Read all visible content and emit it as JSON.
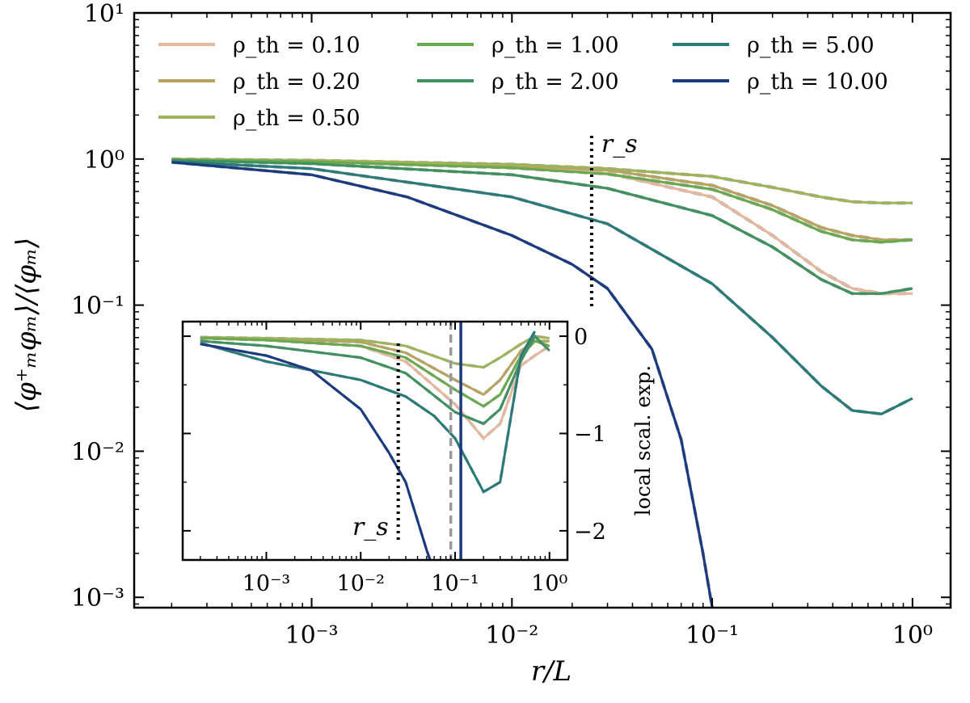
{
  "chart_data": [
    {
      "type": "line",
      "title": "",
      "xlabel": "r/L",
      "ylabel": "⟨φ⁺ₘφₘ⟩/⟨φₘ⟩",
      "xscale": "log",
      "yscale": "log",
      "xlim": [
        0.00013,
        1.55
      ],
      "ylim": [
        0.00085,
        10
      ],
      "xticks": [
        0.001,
        0.01,
        0.1,
        1
      ],
      "xtick_labels": [
        "10⁻³",
        "10⁻²",
        "10⁻¹",
        "10⁰"
      ],
      "yticks": [
        0.001,
        0.01,
        0.1,
        1,
        10
      ],
      "ytick_labels": [
        "10⁻³",
        "10⁻²",
        "10⁻¹",
        "10⁰",
        "10¹"
      ],
      "grid": false,
      "legend_position": "top-left, 3 columns",
      "annotations": [
        {
          "text": "r_s",
          "x": 0.025
        }
      ],
      "fit_curves": "grey dashed",
      "series": [
        {
          "name": "ρ_th = 0.10",
          "color": "#e5b9a0",
          "x": [
            0.0002,
            0.001,
            0.01,
            0.03,
            0.1,
            0.2,
            0.35,
            0.5,
            0.7,
            1.0
          ],
          "y": [
            0.99,
            0.96,
            0.88,
            0.8,
            0.55,
            0.3,
            0.17,
            0.13,
            0.12,
            0.12
          ]
        },
        {
          "name": "ρ_th = 0.20",
          "color": "#b8a460",
          "x": [
            0.0002,
            0.001,
            0.01,
            0.03,
            0.1,
            0.2,
            0.35,
            0.5,
            0.7,
            1.0
          ],
          "y": [
            0.99,
            0.97,
            0.9,
            0.84,
            0.66,
            0.48,
            0.34,
            0.3,
            0.28,
            0.28
          ]
        },
        {
          "name": "ρ_th = 0.50",
          "color": "#9fb45a",
          "x": [
            0.0002,
            0.001,
            0.01,
            0.03,
            0.1,
            0.2,
            0.35,
            0.5,
            0.7,
            1.0
          ],
          "y": [
            1.0,
            0.98,
            0.92,
            0.86,
            0.76,
            0.64,
            0.55,
            0.51,
            0.5,
            0.5
          ]
        },
        {
          "name": "ρ_th = 1.00",
          "color": "#6aaa4e",
          "x": [
            0.0002,
            0.001,
            0.01,
            0.03,
            0.1,
            0.2,
            0.35,
            0.5,
            0.7,
            1.0
          ],
          "y": [
            0.99,
            0.96,
            0.87,
            0.79,
            0.62,
            0.45,
            0.32,
            0.28,
            0.27,
            0.28
          ]
        },
        {
          "name": "ρ_th = 2.00",
          "color": "#3f9160",
          "x": [
            0.0002,
            0.001,
            0.01,
            0.03,
            0.1,
            0.2,
            0.35,
            0.5,
            0.7,
            1.0
          ],
          "y": [
            0.98,
            0.93,
            0.78,
            0.63,
            0.41,
            0.25,
            0.15,
            0.12,
            0.12,
            0.13
          ]
        },
        {
          "name": "ρ_th = 5.00",
          "color": "#2a7a7a",
          "x": [
            0.0002,
            0.001,
            0.01,
            0.03,
            0.1,
            0.2,
            0.35,
            0.5,
            0.7,
            1.0
          ],
          "y": [
            0.96,
            0.86,
            0.55,
            0.36,
            0.14,
            0.06,
            0.028,
            0.019,
            0.018,
            0.023
          ]
        },
        {
          "name": "ρ_th = 10.00",
          "color": "#1a3a80",
          "x": [
            0.0002,
            0.001,
            0.003,
            0.01,
            0.02,
            0.03,
            0.05,
            0.07,
            0.09,
            0.1
          ],
          "y": [
            0.95,
            0.78,
            0.55,
            0.3,
            0.19,
            0.13,
            0.05,
            0.012,
            0.002,
            0.0008
          ]
        }
      ]
    },
    {
      "type": "line",
      "title": "",
      "xlabel": "",
      "ylabel": "local scal. exp.",
      "xscale": "log",
      "yscale": "linear",
      "xlim": [
        0.00013,
        1.55
      ],
      "ylim": [
        -2.3,
        0.15
      ],
      "xticks": [
        0.001,
        0.01,
        0.1,
        1
      ],
      "xtick_labels": [
        "10⁻³",
        "10⁻²",
        "10⁻¹",
        "10⁰"
      ],
      "yticks": [
        -2,
        -1,
        0
      ],
      "ytick_labels": [
        "−2",
        "−1",
        "0"
      ],
      "y_axis_side": "right",
      "annotations": [
        {
          "text": "r_s",
          "x": 0.025
        }
      ],
      "series": [
        {
          "name": "ρ_th = 0.10",
          "color": "#e5b9a0",
          "x": [
            0.0002,
            0.001,
            0.01,
            0.03,
            0.1,
            0.2,
            0.3,
            0.5,
            0.7,
            1.0
          ],
          "y": [
            -0.02,
            -0.04,
            -0.1,
            -0.26,
            -0.7,
            -1.05,
            -0.9,
            -0.3,
            -0.2,
            -0.1
          ]
        },
        {
          "name": "ρ_th = 0.20",
          "color": "#b8a460",
          "x": [
            0.0002,
            0.001,
            0.01,
            0.03,
            0.1,
            0.2,
            0.3,
            0.5,
            0.7,
            1.0
          ],
          "y": [
            -0.02,
            -0.03,
            -0.06,
            -0.17,
            -0.45,
            -0.6,
            -0.45,
            -0.15,
            -0.05,
            -0.05
          ]
        },
        {
          "name": "ρ_th = 0.50",
          "color": "#9fb45a",
          "x": [
            0.0002,
            0.001,
            0.01,
            0.03,
            0.1,
            0.2,
            0.3,
            0.5,
            0.7,
            1.0
          ],
          "y": [
            -0.01,
            -0.02,
            -0.04,
            -0.1,
            -0.28,
            -0.32,
            -0.22,
            -0.08,
            0.0,
            -0.02
          ]
        },
        {
          "name": "ρ_th = 1.00",
          "color": "#6aaa4e",
          "x": [
            0.0002,
            0.001,
            0.01,
            0.03,
            0.1,
            0.2,
            0.3,
            0.5,
            0.7,
            1.0
          ],
          "y": [
            -0.02,
            -0.04,
            -0.1,
            -0.22,
            -0.55,
            -0.72,
            -0.6,
            -0.2,
            -0.05,
            -0.1
          ]
        },
        {
          "name": "ρ_th = 2.00",
          "color": "#3f9160",
          "x": [
            0.0002,
            0.001,
            0.01,
            0.03,
            0.1,
            0.2,
            0.3,
            0.5,
            0.7,
            1.0
          ],
          "y": [
            -0.05,
            -0.1,
            -0.22,
            -0.38,
            -0.78,
            -0.9,
            -0.75,
            -0.25,
            0.0,
            -0.15
          ]
        },
        {
          "name": "ρ_th = 5.00",
          "color": "#2a7a7a",
          "x": [
            0.0002,
            0.001,
            0.01,
            0.03,
            0.06,
            0.1,
            0.2,
            0.3,
            0.5,
            0.7
          ],
          "y": [
            -0.07,
            -0.26,
            -0.45,
            -0.62,
            -0.82,
            -1.05,
            -1.6,
            -1.5,
            -0.2,
            0.05
          ]
        },
        {
          "name": "ρ_th = 10.00",
          "color": "#1a3a80",
          "x": [
            0.0002,
            0.001,
            0.003,
            0.01,
            0.02,
            0.03,
            0.05,
            0.07
          ],
          "y": [
            -0.08,
            -0.2,
            -0.35,
            -0.75,
            -1.2,
            -1.5,
            -2.2,
            -2.6
          ]
        }
      ]
    }
  ]
}
